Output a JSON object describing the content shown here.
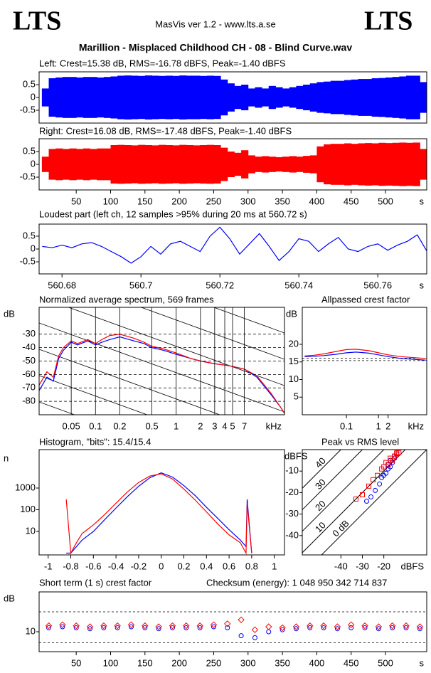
{
  "header": {
    "logo_left": "LTS",
    "logo_right": "LTS",
    "app": "MasVis ver 1.2 - www.lts.a.se",
    "title": "Marillion - Misplaced Childhood CH - 08 - Blind Curve.wav"
  },
  "chart_data": [
    {
      "type": "waveform",
      "title": "Left: Crest=15.38 dB, RMS=-16.78 dBFS, Peak=-1.40 dBFS",
      "color": "#0000ff",
      "x": [
        5,
        15,
        25,
        35,
        45,
        55,
        65,
        75,
        85,
        95,
        105,
        115,
        125,
        135,
        145,
        155,
        165,
        175,
        185,
        195,
        205,
        215,
        225,
        235,
        245,
        255,
        265,
        275,
        285,
        295,
        305,
        315,
        325,
        335,
        345,
        355,
        365,
        375,
        385,
        395,
        405,
        415,
        425,
        435,
        445,
        455,
        465,
        475,
        485,
        495,
        505,
        515,
        525,
        535,
        545,
        555
      ],
      "values": [
        0.35,
        0.75,
        0.78,
        0.8,
        0.8,
        0.78,
        0.8,
        0.8,
        0.78,
        0.8,
        0.82,
        0.85,
        0.86,
        0.85,
        0.84,
        0.86,
        0.85,
        0.84,
        0.85,
        0.84,
        0.86,
        0.85,
        0.85,
        0.84,
        0.85,
        0.84,
        0.7,
        0.55,
        0.45,
        0.5,
        0.35,
        0.4,
        0.35,
        0.45,
        0.4,
        0.35,
        0.4,
        0.45,
        0.5,
        0.55,
        0.6,
        0.62,
        0.65,
        0.65,
        0.68,
        0.7,
        0.72,
        0.72,
        0.75,
        0.76,
        0.78,
        0.8,
        0.82,
        0.85,
        0.85,
        0.6
      ],
      "xlim": [
        -4,
        560
      ],
      "ylim": [
        -1,
        1
      ],
      "yticks": [
        0.5,
        0,
        -0.5
      ]
    },
    {
      "type": "waveform",
      "title": "Right: Crest=16.08 dB, RMS=-17.48 dBFS, Peak=-1.40 dBFS",
      "color": "#ff0000",
      "x": [
        5,
        15,
        25,
        35,
        45,
        55,
        65,
        75,
        85,
        95,
        105,
        115,
        125,
        135,
        145,
        155,
        165,
        175,
        185,
        195,
        205,
        215,
        225,
        235,
        245,
        255,
        265,
        275,
        285,
        295,
        305,
        315,
        325,
        335,
        345,
        355,
        365,
        375,
        385,
        395,
        405,
        415,
        425,
        435,
        445,
        455,
        465,
        475,
        485,
        495,
        505,
        515,
        525,
        535,
        545,
        555
      ],
      "values": [
        0.3,
        0.6,
        0.62,
        0.6,
        0.62,
        0.6,
        0.62,
        0.6,
        0.62,
        0.62,
        0.75,
        0.76,
        0.75,
        0.74,
        0.76,
        0.75,
        0.74,
        0.76,
        0.75,
        0.74,
        0.76,
        0.75,
        0.74,
        0.75,
        0.76,
        0.75,
        0.65,
        0.5,
        0.45,
        0.55,
        0.35,
        0.3,
        0.32,
        0.3,
        0.28,
        0.3,
        0.32,
        0.3,
        0.33,
        0.35,
        0.7,
        0.78,
        0.8,
        0.8,
        0.82,
        0.8,
        0.82,
        0.83,
        0.82,
        0.84,
        0.83,
        0.84,
        0.85,
        0.84,
        0.85,
        0.6
      ],
      "xlim": [
        -4,
        560
      ],
      "ylim": [
        -1,
        1
      ],
      "yticks": [
        0.5,
        0,
        -0.5
      ],
      "xticks": [
        50,
        100,
        150,
        200,
        250,
        300,
        350,
        400,
        450,
        500
      ],
      "x_unit": "s"
    },
    {
      "type": "line",
      "title": "Loudest part (left  ch, 12 samples >95% during 20 ms at 560.72 s)",
      "x": [
        560.675,
        560.6775,
        560.68,
        560.6825,
        560.685,
        560.6875,
        560.69,
        560.6925,
        560.695,
        560.6975,
        560.7,
        560.7025,
        560.705,
        560.7075,
        560.71,
        560.7125,
        560.715,
        560.7175,
        560.72,
        560.7225,
        560.725,
        560.7275,
        560.73,
        560.7325,
        560.735,
        560.7375,
        560.74,
        560.7425,
        560.745,
        560.7475,
        560.75,
        560.7525,
        560.755,
        560.7575,
        560.76,
        560.7625,
        560.765,
        560.7675,
        560.77,
        560.7725
      ],
      "series": [
        {
          "color": "#0000ff",
          "values": [
            0.1,
            0.05,
            0.15,
            0.05,
            0.2,
            0.25,
            0.1,
            -0.1,
            -0.3,
            -0.55,
            -0.3,
            0.1,
            -0.2,
            0.2,
            0.3,
            0.1,
            -0.1,
            0.5,
            0.85,
            0.4,
            -0.2,
            0.2,
            0.6,
            0.1,
            -0.45,
            -0.1,
            0.4,
            0.3,
            -0.1,
            0.2,
            0.45,
            0,
            -0.1,
            0.1,
            0.2,
            -0.05,
            0.15,
            0.3,
            0.55,
            -0.1
          ]
        }
      ],
      "xlim": [
        560.6742,
        560.7724
      ],
      "ylim": [
        -0.97,
        0.97
      ],
      "yticks": [
        0.5,
        0,
        -0.5
      ],
      "xticks": [
        560.68,
        560.7,
        560.72,
        560.74,
        560.76
      ],
      "x_unit": "s"
    },
    {
      "type": "line",
      "title": "Normalized average spectrum, 569 frames",
      "y_label": "dB",
      "x_unit": "kHz",
      "xscale": "log",
      "grid": true,
      "x": [
        0.02,
        0.025,
        0.03,
        0.035,
        0.04,
        0.05,
        0.06,
        0.08,
        0.1,
        0.12,
        0.15,
        0.2,
        0.3,
        0.4,
        0.5,
        0.7,
        1,
        1.5,
        2,
        3,
        4,
        5,
        7,
        10,
        15,
        20,
        22
      ],
      "series": [
        {
          "color": "#0000ff",
          "values": [
            -72,
            -62,
            -65,
            -48,
            -42,
            -36,
            -38,
            -35,
            -38,
            -36,
            -34,
            -32,
            -35,
            -37,
            -40,
            -42,
            -45,
            -48,
            -50,
            -52,
            -53,
            -54,
            -56,
            -62,
            -75,
            -85,
            -89
          ]
        },
        {
          "color": "#ff0000",
          "values": [
            -68,
            -58,
            -62,
            -46,
            -40,
            -35,
            -37,
            -34,
            -37,
            -34,
            -31,
            -30,
            -33,
            -36,
            -39,
            -41,
            -44,
            -48,
            -50,
            -52,
            -53,
            -54,
            -56,
            -61,
            -74,
            -85,
            -89
          ]
        }
      ],
      "xlim": [
        0.02,
        22
      ],
      "ylim": [
        -90,
        -10
      ],
      "yticks": [
        -30,
        -40,
        -50,
        -60,
        -70,
        -80
      ],
      "xticks": [
        0.05,
        0.1,
        0.2,
        0.5,
        1,
        2,
        3,
        4,
        5,
        7
      ]
    },
    {
      "type": "line",
      "title": "Allpassed crest factor",
      "y_label": "dB",
      "x_unit": "kHz",
      "xscale": "log",
      "x": [
        0.005,
        0.01,
        0.02,
        0.05,
        0.1,
        0.2,
        0.5,
        1,
        2,
        5,
        10,
        20,
        30
      ],
      "series": [
        {
          "color": "#0000ff",
          "values": [
            16.5,
            16.6,
            16.8,
            17.2,
            17.6,
            17.8,
            17.5,
            17,
            16.5,
            16,
            15.8,
            15.6,
            15.5
          ]
        },
        {
          "color": "#ff0000",
          "values": [
            16.7,
            16.9,
            17.3,
            18,
            18.5,
            18.6,
            18.2,
            17.6,
            17,
            16.5,
            16.3,
            16.1,
            16
          ]
        }
      ],
      "reference_lines": [
        15.38,
        16.08
      ],
      "xlim": [
        0.0042,
        32
      ],
      "ylim": [
        0,
        30.5
      ],
      "yticks": [
        20,
        15,
        10,
        5
      ],
      "xticks": [
        0.1,
        1,
        2
      ]
    },
    {
      "type": "line",
      "title": "Histogram, \"bits\": 15.4/15.4",
      "y_label": "n",
      "yscale": "log",
      "x": [
        -0.84,
        -0.8,
        -0.75,
        -0.7,
        -0.6,
        -0.5,
        -0.4,
        -0.3,
        -0.2,
        -0.1,
        0,
        0.1,
        0.2,
        0.3,
        0.4,
        0.5,
        0.6,
        0.7,
        0.75,
        0.76,
        0.8
      ],
      "series": [
        {
          "color": "#0000ff",
          "values": [
            1,
            1,
            2,
            4,
            10,
            35,
            120,
            400,
            1200,
            3000,
            5000,
            3200,
            1300,
            450,
            130,
            40,
            12,
            4,
            2,
            300,
            1
          ]
        },
        {
          "color": "#ff0000",
          "values": [
            300,
            1,
            3,
            8,
            20,
            60,
            200,
            650,
            1800,
            3600,
            4500,
            2600,
            900,
            280,
            80,
            22,
            7,
            3,
            1,
            200,
            1
          ]
        }
      ],
      "xlim": [
        -1.08,
        1.09
      ],
      "ylim": [
        0.83,
        59000
      ],
      "yticks": [
        10,
        100,
        1000
      ],
      "xticks": [
        -1,
        -0.8,
        -0.6,
        -0.4,
        -0.2,
        0,
        0.2,
        0.4,
        0.6,
        0.8,
        1
      ]
    },
    {
      "type": "scatter",
      "title": "Peak vs RMS level",
      "y_label": "dBFS",
      "x_unit": "dBFS",
      "series": [
        {
          "color": "#0000ff",
          "marker": "circle",
          "x": [
            -28,
            -26,
            -24,
            -22,
            -21,
            -20,
            -19,
            -18,
            -18,
            -17,
            -17,
            -16,
            -15,
            -15,
            -14
          ],
          "values": [
            -24,
            -22,
            -19,
            -16,
            -13,
            -12,
            -11,
            -9,
            -7,
            -8,
            -5,
            -6,
            -4,
            -3,
            -2
          ]
        },
        {
          "color": "#ff0000",
          "marker": "square",
          "x": [
            -33,
            -30,
            -27,
            -25,
            -23,
            -21,
            -20,
            -19,
            -18,
            -17,
            -16,
            -15,
            -14,
            -14,
            -13
          ],
          "values": [
            -23,
            -21,
            -17,
            -14,
            -12,
            -9,
            -8,
            -6,
            -7,
            -4,
            -5,
            -3,
            -2,
            -1.5,
            -1.4
          ]
        }
      ],
      "crest_lines": [
        {
          "value": 0,
          "label": "0 dB"
        },
        10,
        20,
        30,
        40
      ],
      "xlim": [
        -58,
        0
      ],
      "ylim": [
        -49,
        0
      ],
      "yticks": [
        -10,
        -20,
        -30,
        -40
      ],
      "xticks": [
        -40,
        -30,
        -20
      ]
    },
    {
      "type": "scatter",
      "title": "Short term (1 s) crest factor",
      "annotation": "Checksum (energy):  1 048 950 342 714 837",
      "y_label": "dB",
      "x_unit": "s",
      "series": [
        {
          "color": "#0000ff",
          "marker": "circle",
          "x": [
            10,
            30,
            50,
            70,
            90,
            110,
            130,
            150,
            170,
            190,
            210,
            230,
            250,
            270,
            290,
            310,
            330,
            350,
            370,
            390,
            410,
            430,
            450,
            470,
            490,
            510,
            530,
            550
          ],
          "values": [
            12,
            12.5,
            12,
            11.5,
            12,
            12,
            12.5,
            12,
            11.5,
            12,
            12,
            12,
            12.5,
            12,
            8,
            7,
            10,
            11,
            11.5,
            12,
            12,
            11.5,
            12,
            12,
            11.5,
            12,
            12,
            11.5
          ]
        },
        {
          "color": "#ff0000",
          "marker": "diamond",
          "x": [
            10,
            30,
            50,
            70,
            90,
            110,
            130,
            150,
            170,
            190,
            210,
            230,
            250,
            270,
            290,
            310,
            330,
            350,
            370,
            390,
            410,
            430,
            450,
            470,
            490,
            510,
            530,
            550
          ],
          "values": [
            13,
            13.5,
            13,
            12.5,
            13,
            13,
            13.5,
            13,
            12.5,
            13,
            13,
            13,
            13.5,
            14,
            16,
            11,
            12.5,
            12,
            12.5,
            13,
            13,
            12.5,
            13.5,
            13,
            12.5,
            13,
            13,
            12.5
          ]
        }
      ],
      "reference_lines": [
        20,
        4.5
      ],
      "xlim": [
        -4,
        560
      ],
      "ylim": [
        0,
        30
      ],
      "yticks": [
        10
      ],
      "xticks": [
        50,
        100,
        150,
        200,
        250,
        300,
        350,
        400,
        450,
        500
      ]
    }
  ]
}
